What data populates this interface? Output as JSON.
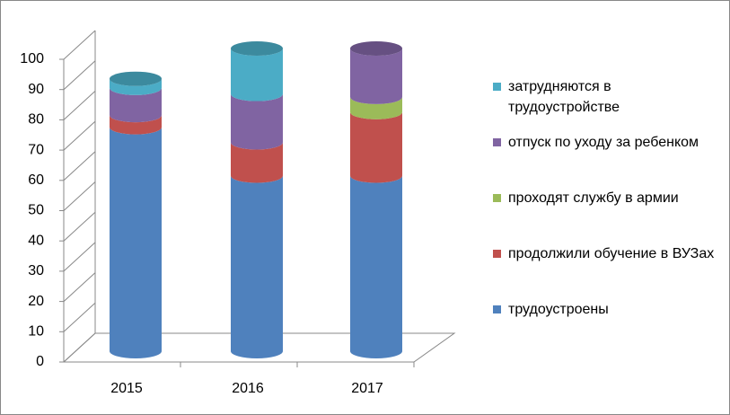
{
  "chart_data": {
    "type": "bar3d-stacked",
    "categories": [
      "2015",
      "2016",
      "2017"
    ],
    "series": [
      {
        "name": "трудоустроены",
        "color": "#4f81bd",
        "values": [
          74,
          58,
          58
        ]
      },
      {
        "name": "продолжили обучение в ВУЗах",
        "color": "#c0504d",
        "values": [
          4,
          11,
          21
        ]
      },
      {
        "name": "проходят службу в армии",
        "color": "#9bbb59",
        "values": [
          0,
          0,
          5
        ]
      },
      {
        "name": "отпуск по уходу за ребенком",
        "color": "#8064a2",
        "values": [
          9,
          16,
          16
        ]
      },
      {
        "name": "затрудняются в трудоустройстве",
        "color": "#4bacc6",
        "values": [
          3,
          15,
          0
        ]
      }
    ],
    "ylim": [
      0,
      100
    ],
    "yticks": [
      0,
      10,
      20,
      30,
      40,
      50,
      60,
      70,
      80,
      90,
      100
    ],
    "grid": true
  }
}
